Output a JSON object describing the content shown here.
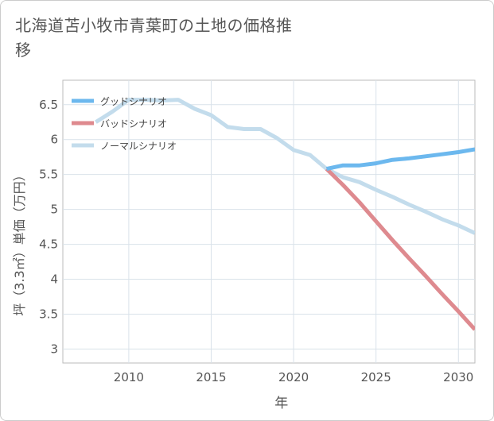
{
  "title": "北海道苫小牧市青葉町の土地の価格推移",
  "chart_data": {
    "type": "line",
    "title": "北海道苫小牧市青葉町の土地の価格推移",
    "xlabel": "年",
    "ylabel": "坪（3.3㎡）単価（万円）",
    "xlim": [
      2006,
      2031
    ],
    "ylim": [
      2.8,
      6.85
    ],
    "x_ticks": [
      2010,
      2015,
      2020,
      2025,
      2030
    ],
    "y_ticks": [
      3,
      3.5,
      4,
      4.5,
      5,
      5.5,
      6,
      6.5
    ],
    "y_tick_labels": [
      "3",
      "3.5",
      "4",
      "4.5",
      "5",
      "5.5",
      "6",
      "6.5"
    ],
    "grid": true,
    "legend_position": "top-left",
    "series": [
      {
        "name": "グッドシナリオ",
        "color": "#6cb8ee",
        "x": [
          2022,
          2023,
          2024,
          2025,
          2026,
          2027,
          2028,
          2029,
          2030,
          2031
        ],
        "y": [
          5.58,
          5.63,
          5.63,
          5.66,
          5.71,
          5.73,
          5.76,
          5.79,
          5.82,
          5.86
        ]
      },
      {
        "name": "バッドシナリオ",
        "color": "#de8a8f",
        "x": [
          2022,
          2023,
          2024,
          2025,
          2026,
          2027,
          2028,
          2029,
          2030,
          2031
        ],
        "y": [
          5.58,
          5.35,
          5.1,
          4.83,
          4.56,
          4.3,
          4.05,
          3.79,
          3.54,
          3.28
        ]
      },
      {
        "name": "ノーマルシナリオ",
        "color": "#c3dcec",
        "x": [
          2008,
          2009,
          2010,
          2011,
          2012,
          2013,
          2014,
          2015,
          2016,
          2017,
          2018,
          2019,
          2020,
          2021,
          2022,
          2023,
          2024,
          2025,
          2026,
          2027,
          2028,
          2029,
          2030,
          2031
        ],
        "y": [
          6.25,
          6.4,
          6.57,
          6.57,
          6.56,
          6.57,
          6.44,
          6.35,
          6.18,
          6.15,
          6.15,
          6.02,
          5.85,
          5.78,
          5.58,
          5.46,
          5.39,
          5.28,
          5.18,
          5.07,
          4.97,
          4.86,
          4.77,
          4.66
        ]
      }
    ]
  }
}
